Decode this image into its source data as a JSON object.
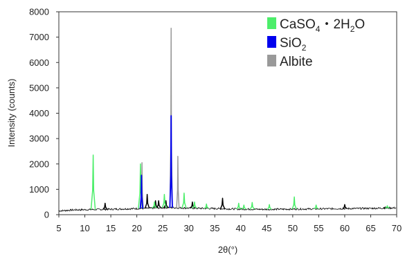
{
  "chart_data": {
    "type": "line",
    "title": "",
    "xlabel": "2θ(°)",
    "ylabel": "Intensity (counts)",
    "xlim": [
      5,
      70
    ],
    "ylim": [
      0,
      8000
    ],
    "x_ticks": [
      "5",
      "10",
      "15",
      "20",
      "25",
      "30",
      "35",
      "40",
      "45",
      "50",
      "55",
      "60",
      "65",
      "70"
    ],
    "y_ticks": [
      "0",
      "1000",
      "2000",
      "3000",
      "4000",
      "5000",
      "6000",
      "7000",
      "8000"
    ],
    "grid": false,
    "legend_position": "top-right",
    "legend": [
      {
        "label_parts": [
          "CaSO",
          "4",
          "・2H",
          "2",
          "O"
        ],
        "color": "#4cee6a",
        "name": "gypsum"
      },
      {
        "label_parts": [
          "SiO",
          "2"
        ],
        "color": "#0000ee",
        "name": "quartz"
      },
      {
        "label_parts": [
          "Albite"
        ],
        "color": "#999999",
        "name": "albite"
      }
    ],
    "baseline": {
      "color": "#000000",
      "points": [
        [
          5,
          150
        ],
        [
          8,
          190
        ],
        [
          11,
          200
        ],
        [
          14,
          210
        ],
        [
          18,
          230
        ],
        [
          22,
          250
        ],
        [
          26,
          280
        ],
        [
          30,
          260
        ],
        [
          35,
          240
        ],
        [
          40,
          220
        ],
        [
          45,
          210
        ],
        [
          50,
          220
        ],
        [
          55,
          230
        ],
        [
          60,
          240
        ],
        [
          65,
          250
        ],
        [
          70,
          270
        ]
      ]
    },
    "peaks": {
      "gypsum": {
        "color": "#4cee6a",
        "points": [
          [
            11.6,
            2350
          ],
          [
            20.7,
            2000
          ],
          [
            23.4,
            500
          ],
          [
            25.3,
            800
          ],
          [
            29.1,
            850
          ],
          [
            31.1,
            500
          ],
          [
            33.4,
            420
          ],
          [
            39.6,
            450
          ],
          [
            40.6,
            380
          ],
          [
            42.2,
            480
          ],
          [
            45.5,
            400
          ],
          [
            50.3,
            700
          ],
          [
            54.5,
            380
          ],
          [
            68.2,
            350
          ]
        ]
      },
      "quartz": {
        "color": "#0000ee",
        "points": [
          [
            20.9,
            1550
          ],
          [
            26.6,
            3900
          ]
        ]
      },
      "albite": {
        "color": "#999999",
        "points": [
          [
            21.0,
            2050
          ],
          [
            26.6,
            7350
          ],
          [
            27.9,
            2300
          ]
        ]
      },
      "other": {
        "color": "#000000",
        "points": [
          [
            13.9,
            450
          ],
          [
            22.0,
            800
          ],
          [
            23.6,
            550
          ],
          [
            24.2,
            550
          ],
          [
            25.6,
            550
          ],
          [
            30.7,
            500
          ],
          [
            36.5,
            650
          ],
          [
            60.0,
            400
          ],
          [
            67.8,
            300
          ]
        ]
      }
    }
  }
}
